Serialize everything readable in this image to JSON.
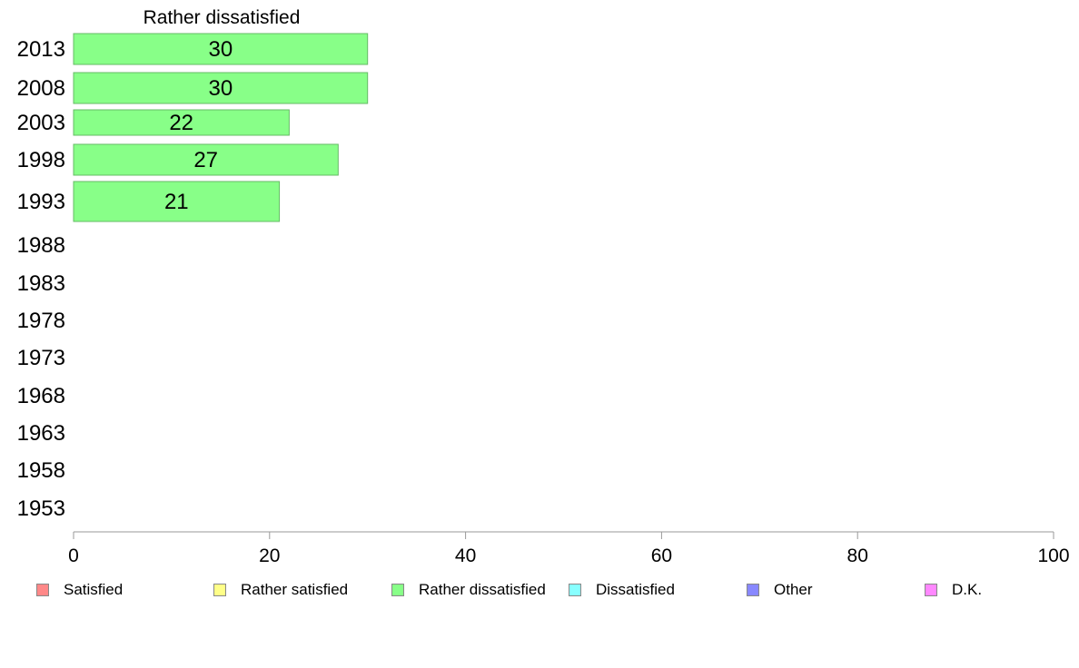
{
  "chart_data": {
    "type": "bar",
    "orientation": "horizontal",
    "title": "Rather dissatisfied",
    "categories": [
      "2013",
      "2008",
      "2003",
      "1998",
      "1993",
      "1988",
      "1983",
      "1978",
      "1973",
      "1968",
      "1963",
      "1958",
      "1953"
    ],
    "series": [
      {
        "name": "Rather dissatisfied",
        "values": [
          30,
          30,
          22,
          27,
          21,
          null,
          null,
          null,
          null,
          null,
          null,
          null,
          null
        ],
        "color": "#88ff88"
      }
    ],
    "xlim": [
      0,
      100
    ],
    "xticks": [
      "0",
      "20",
      "40",
      "60",
      "80",
      "100"
    ],
    "grid": false,
    "legend_position": "bottom"
  },
  "legend": [
    {
      "label": "Satisfied",
      "color": "#ff8888"
    },
    {
      "label": "Rather satisfied",
      "color": "#ffff88"
    },
    {
      "label": "Rather dissatisfied",
      "color": "#88ff88"
    },
    {
      "label": "Dissatisfied",
      "color": "#88ffff"
    },
    {
      "label": "Other",
      "color": "#8888ff"
    },
    {
      "label": "D.K.",
      "color": "#ff88ff"
    }
  ]
}
